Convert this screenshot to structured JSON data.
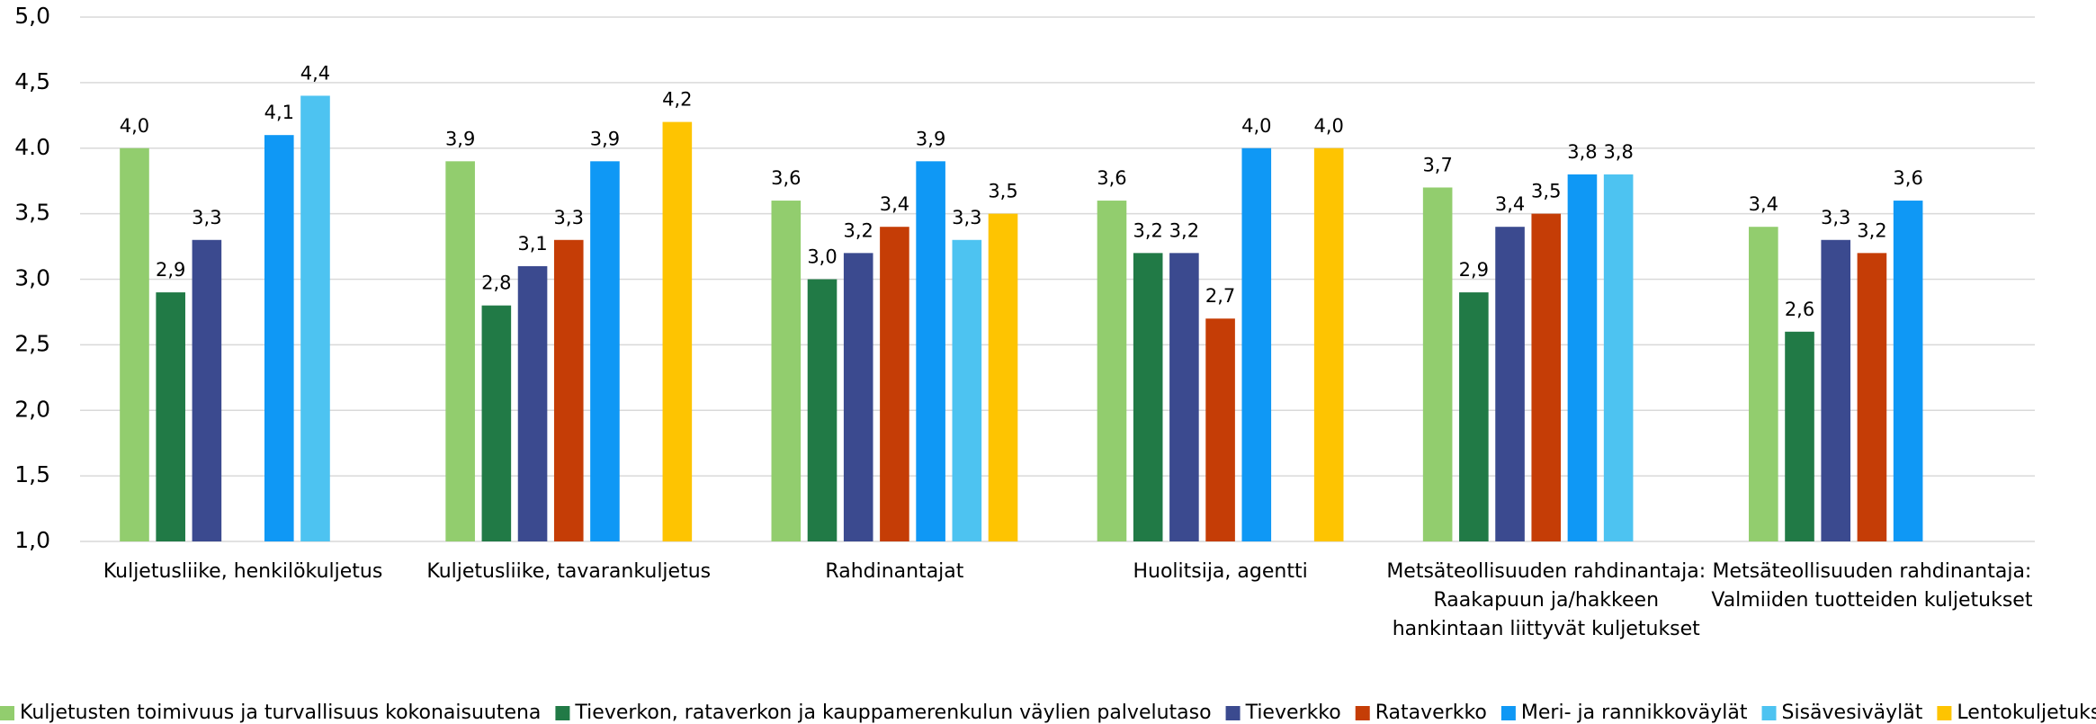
{
  "chart_data": {
    "type": "bar",
    "categories": [
      [
        "Kuljetusliike, henkilökuljetus"
      ],
      [
        "Kuljetusliike, tavarankuljetus"
      ],
      [
        "Rahdinantajat"
      ],
      [
        "Huolitsija, agentti"
      ],
      [
        "Metsäteollisuuden rahdinantaja:",
        "Raakapuun ja/hakkeen",
        "hankintaan liittyvät kuljetukset"
      ],
      [
        "Metsäteollisuuden rahdinantaja:",
        "Valmiiden tuotteiden kuljetukset"
      ]
    ],
    "series": [
      {
        "name": "Kuljetusten toimivuus ja turvallisuus kokonaisuutena",
        "color": "#92cd6e",
        "values": [
          4.0,
          3.9,
          3.6,
          3.6,
          3.7,
          3.4
        ],
        "value_labels": [
          "4,0",
          "3,9",
          "3,6",
          "3,6",
          "3,7",
          "3,4"
        ]
      },
      {
        "name": "Tieverkon, rataverkon ja kauppamerenkulun väylien palvelutaso",
        "color": "#217a46",
        "values": [
          2.9,
          2.8,
          3.0,
          3.2,
          2.9,
          2.6
        ],
        "value_labels": [
          "2,9",
          "2,8",
          "3,0",
          "3,2",
          "2,9",
          "2,6"
        ]
      },
      {
        "name": "Tieverkko",
        "color": "#3b4a8f",
        "values": [
          3.3,
          3.1,
          3.2,
          3.2,
          3.4,
          3.3
        ],
        "value_labels": [
          "3,3",
          "3,1",
          "3,2",
          "3,2",
          "3,4",
          "3,3"
        ]
      },
      {
        "name": "Rataverkko",
        "color": "#c53d06",
        "values": [
          null,
          3.3,
          3.4,
          2.7,
          3.5,
          3.2
        ],
        "value_labels": [
          null,
          "3,3",
          "3,4",
          "2,7",
          "3,5",
          "3,2"
        ]
      },
      {
        "name": "Meri- ja rannikkoväylät",
        "color": "#0f98f5",
        "values": [
          4.1,
          3.9,
          3.9,
          4.0,
          3.8,
          3.6
        ],
        "value_labels": [
          "4,1",
          "3,9",
          "3,9",
          "4,0",
          "3,8",
          "3,6"
        ]
      },
      {
        "name": "Sisävesiväylät",
        "color": "#4dc3f1",
        "values": [
          4.4,
          null,
          3.3,
          null,
          3.8,
          null
        ],
        "value_labels": [
          "4,4",
          null,
          "3,3",
          null,
          "3,8",
          null
        ]
      },
      {
        "name": "Lentokuljetukset",
        "color": "#fec401",
        "values": [
          null,
          4.2,
          3.5,
          4.0,
          null,
          null
        ],
        "value_labels": [
          null,
          "4,2",
          "3,5",
          "4,0",
          null,
          null
        ]
      }
    ],
    "ylim": [
      1.0,
      5.0
    ],
    "yticks": [
      {
        "value": 1.0,
        "label": "1,0"
      },
      {
        "value": 1.5,
        "label": "1,5"
      },
      {
        "value": 2.0,
        "label": "2,0"
      },
      {
        "value": 2.5,
        "label": "2,5"
      },
      {
        "value": 3.0,
        "label": "3,0"
      },
      {
        "value": 3.5,
        "label": "3,5"
      },
      {
        "value": 4.0,
        "label": "4.0"
      },
      {
        "value": 4.5,
        "label": "4,5"
      },
      {
        "value": 5.0,
        "label": "5,0"
      }
    ],
    "grid": true,
    "legend": "bottom"
  }
}
